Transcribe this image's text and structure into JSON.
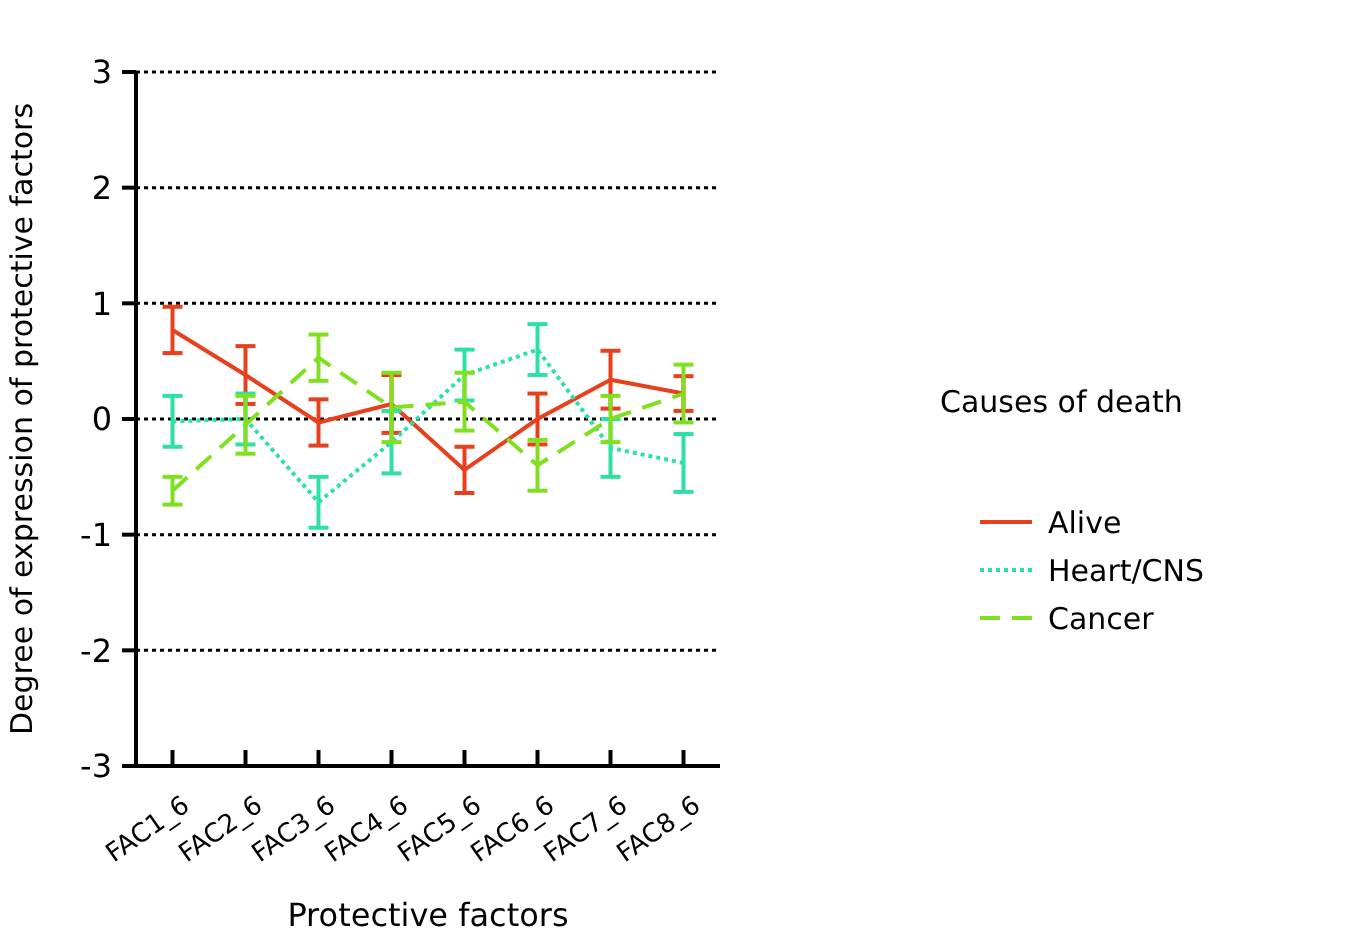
{
  "chart_data": {
    "type": "line",
    "xlabel": "Protective factors",
    "ylabel": "Degree of expression of protective factors",
    "legend_title": "Causes of death",
    "legend": "right",
    "grid": "y",
    "marker": "none",
    "categories": [
      "FAC1_6",
      "FAC2_6",
      "FAC3_6",
      "FAC4_6",
      "FAC5_6",
      "FAC6_6",
      "FAC7_6",
      "FAC8_6"
    ],
    "ylim": [
      -3,
      3
    ],
    "yticks": [
      -3,
      -2,
      -1,
      0,
      1,
      2,
      3
    ],
    "series": [
      {
        "name": "Alive",
        "color": "#e8401c",
        "line_style": "solid",
        "values": [
          0.77,
          0.38,
          -0.03,
          0.13,
          -0.44,
          0,
          0.34,
          0.22
        ],
        "errors": [
          0.2,
          0.25,
          0.2,
          0.25,
          0.2,
          0.22,
          0.25,
          0.15
        ]
      },
      {
        "name": "Heart/CNS",
        "color": "#2ee0a8",
        "line_style": "dotted",
        "values": [
          -0.02,
          0,
          -0.72,
          -0.2,
          0.38,
          0.6,
          -0.25,
          -0.38
        ],
        "errors": [
          0.22,
          0.22,
          0.22,
          0.27,
          0.22,
          0.22,
          0.25,
          0.25
        ]
      },
      {
        "name": "Cancer",
        "color": "#80e020",
        "line_style": "dashed",
        "values": [
          -0.62,
          -0.05,
          0.53,
          0.1,
          0.15,
          -0.4,
          0,
          0.22
        ],
        "errors": [
          0.12,
          0.25,
          0.2,
          0.3,
          0.25,
          0.22,
          0.2,
          0.25
        ]
      }
    ]
  }
}
